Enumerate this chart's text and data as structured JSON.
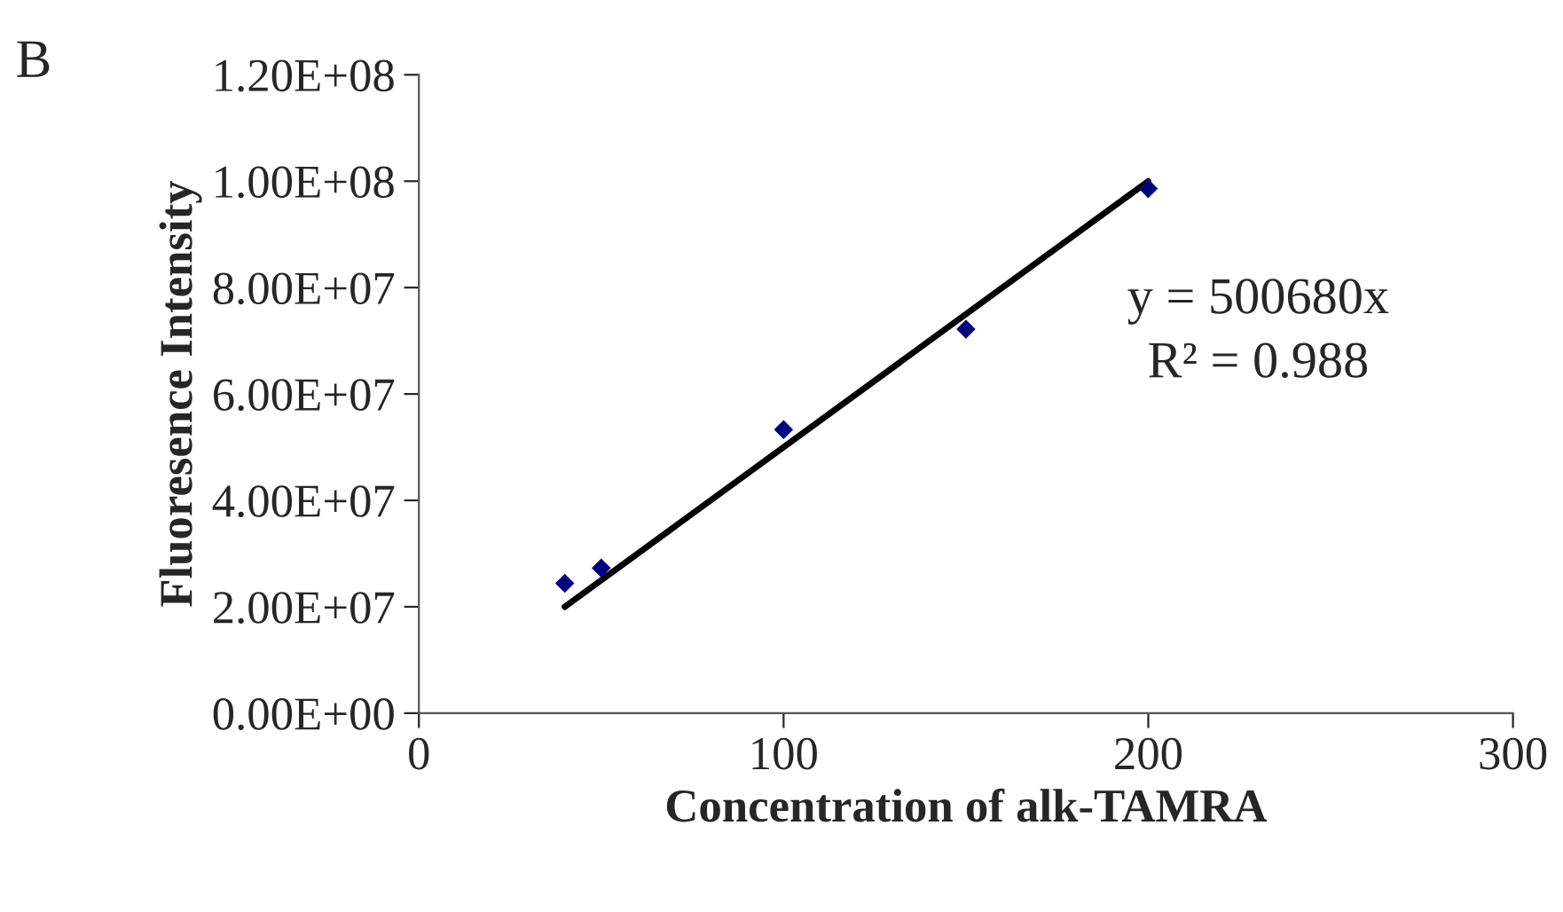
{
  "chart_data": {
    "type": "scatter",
    "xlabel": "Concentration of alk-TAMRA",
    "ylabel": "Fluoresence Intensity",
    "annotations": [
      "B",
      "y = 500680x",
      "R² = 0.988"
    ],
    "grid": false,
    "series": [
      {
        "marker": "diamond",
        "color": "#000080",
        "x": [
          40,
          50,
          100,
          150,
          200
        ],
        "values": [
          24400000,
          27300000,
          53300000,
          72200000,
          98600000
        ]
      },
      {
        "type": "line",
        "marker": "none",
        "color": "#000000",
        "x": [
          40,
          200
        ],
        "values": [
          20000000,
          100000000
        ]
      }
    ],
    "xlim": [
      0,
      300
    ],
    "xticks": [
      0,
      100,
      200,
      300
    ],
    "ylim": [
      0,
      120000000
    ],
    "yticks": [
      {
        "value": 0,
        "label": "0.00E+00"
      },
      {
        "value": 20000000,
        "label": "2.00E+07"
      },
      {
        "value": 40000000,
        "label": "4.00E+07"
      },
      {
        "value": 60000000,
        "label": "6.00E+07"
      },
      {
        "value": 80000000,
        "label": "8.00E+07"
      },
      {
        "value": 100000000,
        "label": "1.00E+08"
      },
      {
        "value": 120000000,
        "label": "1.20E+08"
      }
    ]
  }
}
